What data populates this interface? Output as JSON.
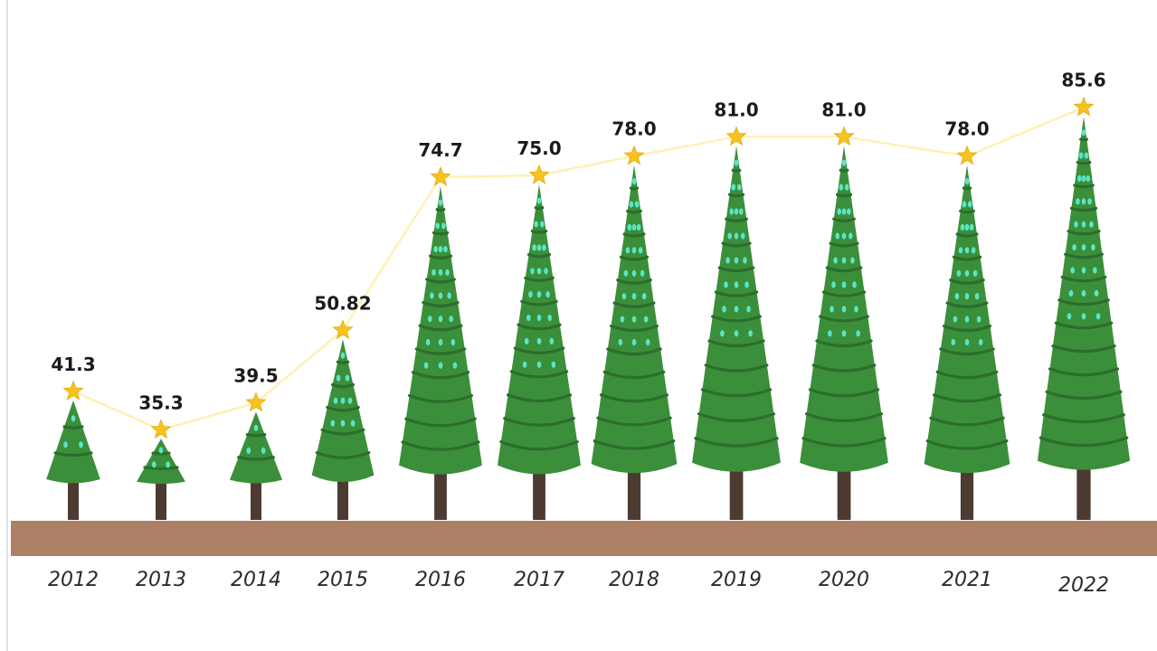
{
  "chart_data": {
    "type": "line",
    "categories": [
      "2012",
      "2013",
      "2014",
      "2015",
      "2016",
      "2017",
      "2018",
      "2019",
      "2020",
      "2021",
      "2022"
    ],
    "values": [
      41.3,
      35.3,
      39.5,
      50.82,
      74.7,
      75.0,
      78.0,
      81.0,
      81.0,
      78.0,
      85.6
    ],
    "value_labels": [
      "41.3",
      "35.3",
      "39.5",
      "50.82",
      "74.7",
      "75.0",
      "78.0",
      "81.0",
      "81.0",
      "78.0",
      "85.6"
    ],
    "title": "",
    "xlabel": "",
    "ylabel": "",
    "grid": false,
    "legend": "none",
    "marks": "pictorial trees with star markers",
    "colors": {
      "line": "#fff1b3",
      "star": "#f7c31e",
      "tree": "#3b8f3a",
      "tree_band": "#2c6e2d",
      "ornament": "#58e6c6",
      "trunk": "#4b3b31",
      "ground": "#ad8066",
      "frame_line": "#d9d9d9"
    }
  }
}
